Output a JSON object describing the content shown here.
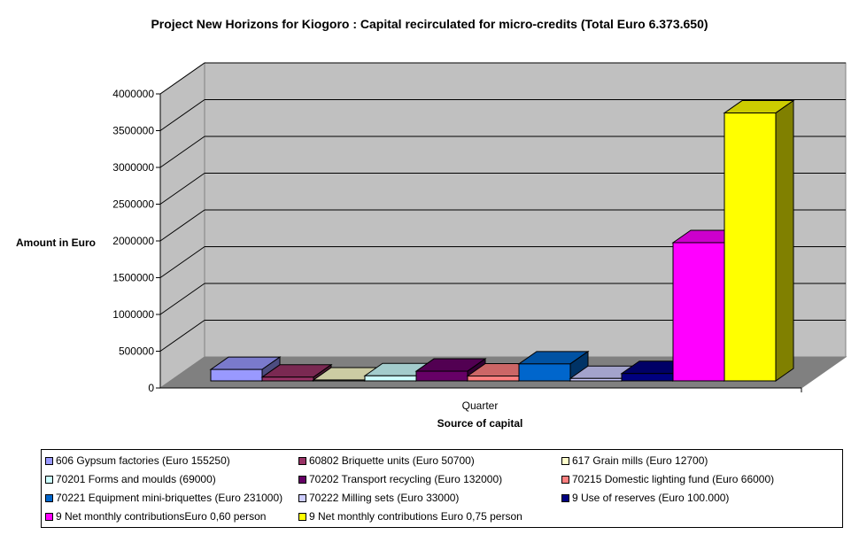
{
  "chart_data": {
    "type": "bar",
    "title": "Project New Horizons for Kiogoro : Capital recirculated for micro-credits (Total Euro 6.373.650)",
    "xlabel": "Source of capital",
    "ylabel": "Amount in Euro",
    "categories": [
      "Quarter"
    ],
    "ylim": [
      0,
      4000000
    ],
    "yticks": [
      "0",
      "500000",
      "1000000",
      "1500000",
      "2000000",
      "2500000",
      "3000000",
      "3500000",
      "4000000"
    ],
    "grid": true,
    "legend": "bottom",
    "series": [
      {
        "name": "606 Gypsum factories (Euro 155250)",
        "values": [
          155250
        ],
        "color": "#9999FF"
      },
      {
        "name": "60802 Briquette units (Euro 50700)",
        "values": [
          50700
        ],
        "color": "#993366"
      },
      {
        "name": "617 Grain mills (Euro 12700)",
        "values": [
          12700
        ],
        "color": "#FFFFCC"
      },
      {
        "name": "70201 Forms and  moulds (69000)",
        "values": [
          69000
        ],
        "color": "#CCFFFF"
      },
      {
        "name": "70202 Transport recycling (Euro 132000)",
        "values": [
          132000
        ],
        "color": "#660066"
      },
      {
        "name": "70215 Domestic lighting fund (Euro 66000)",
        "values": [
          66000
        ],
        "color": "#FF8080"
      },
      {
        "name": "70221 Equipment mini-briquettes (Euro 231000)",
        "values": [
          231000
        ],
        "color": "#0066CC"
      },
      {
        "name": "70222 Milling sets (Euro 33000)",
        "values": [
          33000
        ],
        "color": "#CCCCFF"
      },
      {
        "name": "9 Use of reserves (Euro 100.000)",
        "values": [
          100000
        ],
        "color": "#000080"
      },
      {
        "name": "9 Net monthly contributionsEuro 0,60 person",
        "values": [
          1880000
        ],
        "color": "#FF00FF"
      },
      {
        "name": "9 Net monthly contributions Euro 0,75 person",
        "values": [
          3644000
        ],
        "color": "#FFFF00"
      }
    ]
  }
}
